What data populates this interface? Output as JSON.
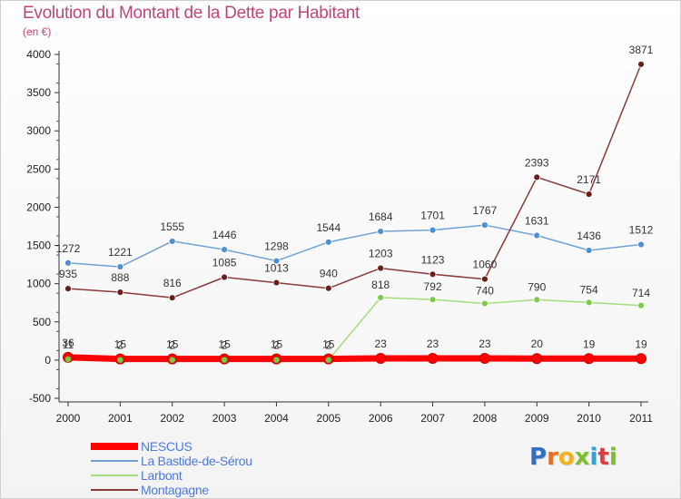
{
  "title": "Evolution du Montant de la Dette par Habitant",
  "unit": "(en €)",
  "logo": {
    "text": "Proxiti",
    "letter_colors": [
      "#2f6fc4",
      "#e0721f",
      "#f0b21c",
      "#7fbf2f",
      "#2fa2d8",
      "#e03c3c",
      "#7fbf2f"
    ]
  },
  "chart_data": {
    "type": "line",
    "x": [
      "2000",
      "2001",
      "2002",
      "2003",
      "2004",
      "2005",
      "2006",
      "2007",
      "2008",
      "2009",
      "2010",
      "2011"
    ],
    "ylim": [
      -500,
      4000
    ],
    "yticks": [
      "-500",
      "0",
      "500",
      "1000",
      "1500",
      "2000",
      "2500",
      "3000",
      "3500",
      "4000"
    ],
    "grid": false,
    "legend_position": "bottom-left",
    "series": [
      {
        "name": "NESCUS",
        "color": "#ff0000",
        "marker": "#ff0000",
        "values": [
          36,
          15,
          15,
          15,
          15,
          15,
          23,
          23,
          23,
          20,
          19,
          19
        ],
        "labels": [
          "36",
          "15",
          "15",
          "15",
          "15",
          "15",
          "23",
          "23",
          "23",
          "20",
          "19",
          "19"
        ]
      },
      {
        "name": "La Bastide-de-Sérou",
        "color": "#6fa3d6",
        "marker": "#4d8fd0",
        "values": [
          1272,
          1221,
          1555,
          1446,
          1298,
          1544,
          1684,
          1701,
          1767,
          1631,
          1436,
          1512
        ],
        "labels": [
          "1272",
          "1221",
          "1555",
          "1446",
          "1298",
          "1544",
          "1684",
          "1701",
          "1767",
          "1631",
          "1436",
          "1512"
        ]
      },
      {
        "name": "Larbont",
        "color": "#a4dd7c",
        "marker": "#7fc94a",
        "values": [
          11,
          2,
          2,
          2,
          2,
          2,
          818,
          792,
          740,
          790,
          754,
          714
        ],
        "labels": [
          "11",
          "2",
          "2",
          "2",
          "2",
          "2",
          "818",
          "792",
          "740",
          "790",
          "754",
          "714"
        ]
      },
      {
        "name": "Montagagne",
        "color": "#8a3a3a",
        "marker": "#6b1e1e",
        "values": [
          935,
          888,
          816,
          1085,
          1013,
          940,
          1203,
          1123,
          1060,
          2393,
          2171,
          3871
        ],
        "labels": [
          "935",
          "888",
          "816",
          "1085",
          "1013",
          "940",
          "1203",
          "1123",
          "1060",
          "2393",
          "2171",
          "3871"
        ]
      }
    ]
  }
}
